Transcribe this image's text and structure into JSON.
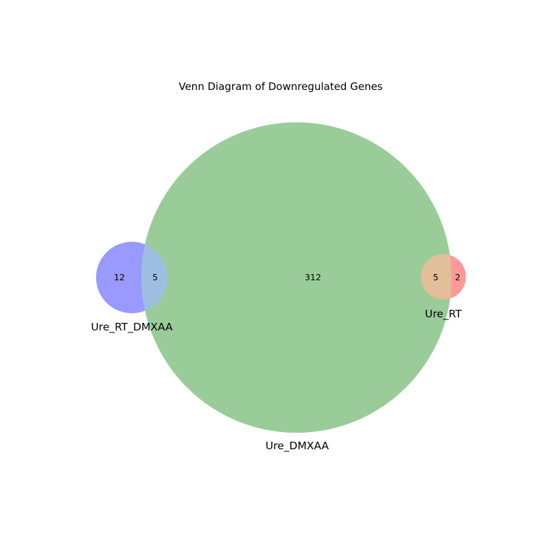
{
  "diagram": {
    "title": "Venn Diagram of Downregulated Genes",
    "sets": [
      {
        "key": "ure_rt_dmxaa",
        "label": "Ure_RT_DMXAA",
        "color": "#9999ff"
      },
      {
        "key": "ure_dmxaa",
        "label": "Ure_DMXAA",
        "color": "#99cc99"
      },
      {
        "key": "ure_rt",
        "label": "Ure_RT",
        "color": "#ff9999"
      }
    ],
    "overlap_colors": {
      "ure_rt_dmxaa_and_ure_dmxaa": "#9ebfe2",
      "ure_dmxaa_and_ure_rt": "#e2be99"
    },
    "regions": {
      "ure_rt_dmxaa_only": "12",
      "ure_rt_dmxaa_and_ure_dmxaa": "5",
      "ure_dmxaa_only": "312",
      "ure_dmxaa_and_ure_rt": "5",
      "ure_rt_only": "2"
    }
  }
}
